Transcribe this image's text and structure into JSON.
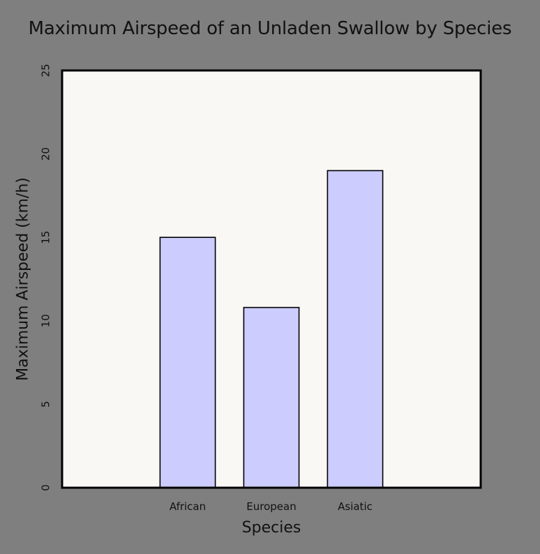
{
  "chart_data": {
    "type": "bar",
    "title": "Maximum Airspeed of an Unladen Swallow by Species",
    "xlabel": "Species",
    "ylabel": "Maximum Airspeed (km/h)",
    "categories": [
      "African",
      "European",
      "Asiatic"
    ],
    "values": [
      15,
      10.8,
      19
    ],
    "ylim": [
      0,
      25
    ],
    "xlim": [
      -1.5,
      3.5
    ],
    "yticks": [
      "0",
      "5",
      "10",
      "15",
      "20",
      "25"
    ],
    "grid": false,
    "legend": "none",
    "colors": {
      "background": "#7f7f7f",
      "plot_background": "#f9f8f4",
      "bar_fill": "#ccccff",
      "bar_edge": "#000000",
      "text": "#111111"
    }
  }
}
